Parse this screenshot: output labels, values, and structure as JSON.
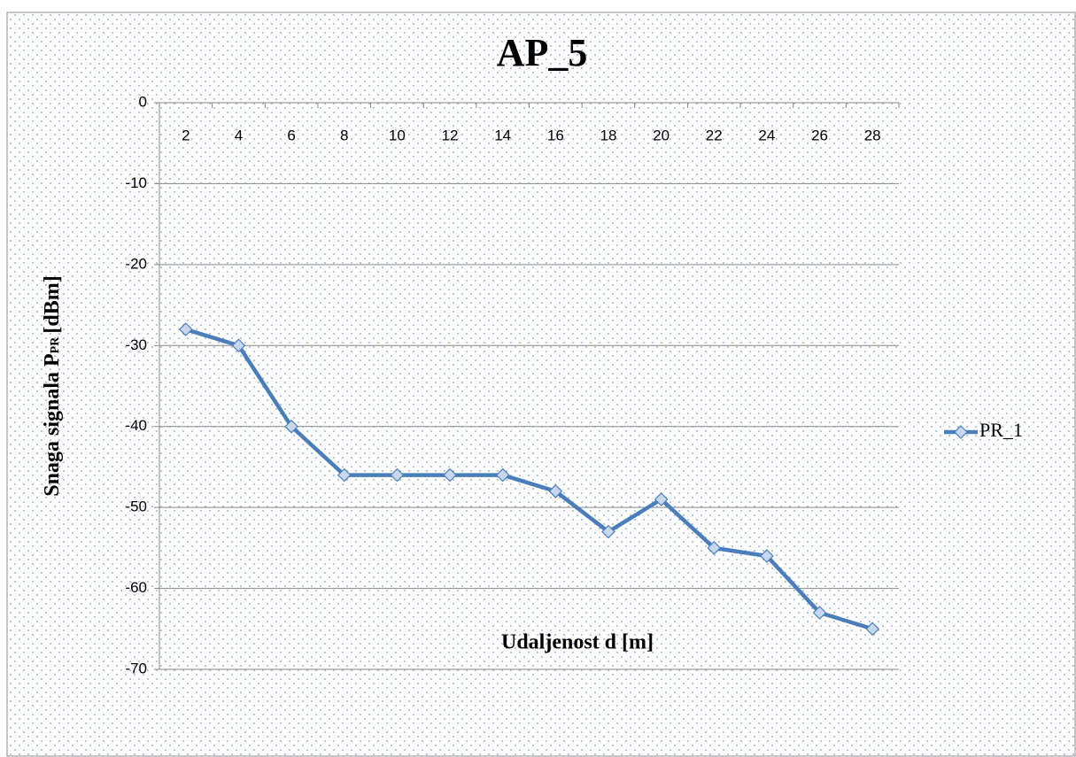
{
  "chart_data": {
    "type": "line",
    "title": "AP_5",
    "x_label": "Udaljenost d [m]",
    "y_label": {
      "main": "Snaga signala P",
      "sub": "PR",
      "unit": "[dBm]"
    },
    "categories": [
      "2",
      "4",
      "6",
      "8",
      "10",
      "12",
      "14",
      "16",
      "18",
      "20",
      "22",
      "24",
      "26",
      "28"
    ],
    "series": [
      {
        "name": "PR_1",
        "color": "#4a7ebb",
        "values": [
          -28,
          -30,
          -40,
          -46,
          -46,
          -46,
          -46,
          -48,
          -53,
          -49,
          -55,
          -56,
          -63,
          -65
        ]
      }
    ],
    "ylim": [
      -70,
      0
    ],
    "yticks": [
      0,
      -10,
      -20,
      -30,
      -40,
      -50,
      -60,
      -70
    ],
    "grid": true,
    "legend": "right"
  }
}
